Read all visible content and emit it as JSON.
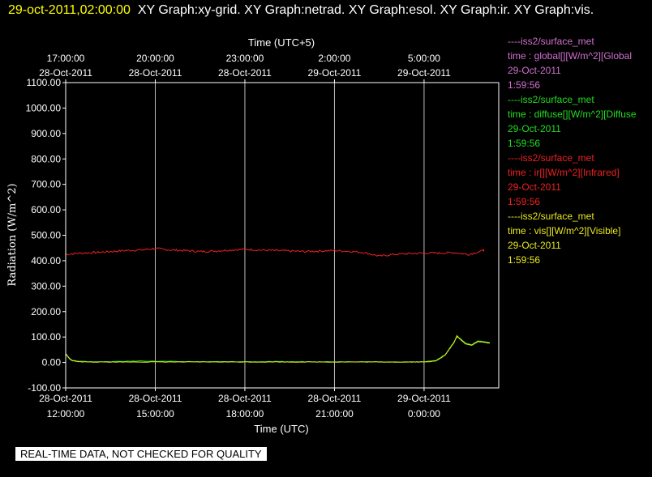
{
  "header": {
    "timestamp": "29-oct-2011,02:00:00",
    "graphs": "XY Graph:xy-grid.  XY Graph:netrad.  XY Graph:esol.  XY Graph:ir.  XY Graph:vis."
  },
  "notice": "REAL-TIME DATA, NOT CHECKED FOR QUALITY",
  "legend": [
    {
      "source": "----iss2/surface_met",
      "variable": "time : global[][W/m^2][Global",
      "date": "29-Oct-2011",
      "time": "1:59:56",
      "color": "#d070d0"
    },
    {
      "source": "----iss2/surface_met",
      "variable": "time : diffuse[][W/m^2][Diffuse",
      "date": "29-Oct-2011",
      "time": "1:59:56",
      "color": "#22dd22"
    },
    {
      "source": "----iss2/surface_met",
      "variable": "time : ir[][W/m^2][Infrared]",
      "date": "29-Oct-2011",
      "time": "1:59:56",
      "color": "#ee2020"
    },
    {
      "source": "----iss2/surface_met",
      "variable": "time : vis[][W/m^2][Visible]",
      "date": "29-Oct-2011",
      "time": "1:59:56",
      "color": "#e8e820"
    }
  ],
  "chart_data": {
    "type": "line",
    "xlabel": "Time (UTC)",
    "top_xlabel": "Time (UTC+5)",
    "ylabel": "Radiation (W/m^2)",
    "ylim": [
      -100,
      1100
    ],
    "xlim_hours": [
      12,
      26.5
    ],
    "yticks": [
      "1100.00",
      "1000.00",
      "900.00",
      "800.00",
      "700.00",
      "600.00",
      "500.00",
      "400.00",
      "300.00",
      "200.00",
      "100.00",
      "0.00",
      "-100.00"
    ],
    "bottom_ticks": [
      {
        "hour": 12,
        "date": "28-Oct-2011",
        "time": "12:00:00"
      },
      {
        "hour": 15,
        "date": "28-Oct-2011",
        "time": "15:00:00"
      },
      {
        "hour": 18,
        "date": "28-Oct-2011",
        "time": "18:00:00"
      },
      {
        "hour": 21,
        "date": "28-Oct-2011",
        "time": "21:00:00"
      },
      {
        "hour": 24,
        "date": "29-Oct-2011",
        "time": "0:00:00"
      }
    ],
    "top_ticks": [
      {
        "hour": 12,
        "time": "17:00:00",
        "date": "28-Oct-2011"
      },
      {
        "hour": 15,
        "time": "20:00:00",
        "date": "28-Oct-2011"
      },
      {
        "hour": 18,
        "time": "23:00:00",
        "date": "28-Oct-2011"
      },
      {
        "hour": 21,
        "time": "2:00:00",
        "date": "29-Oct-2011"
      },
      {
        "hour": 24,
        "time": "5:00:00",
        "date": "29-Oct-2011"
      }
    ],
    "grid": true,
    "series": [
      {
        "name": "ir",
        "color": "#ee2020",
        "x": [
          12.0,
          12.5,
          13.0,
          13.5,
          14.0,
          14.5,
          15.0,
          15.5,
          16.0,
          16.5,
          17.0,
          17.5,
          18.0,
          18.5,
          19.0,
          19.5,
          20.0,
          20.5,
          21.0,
          21.5,
          22.0,
          22.5,
          23.0,
          23.5,
          24.0,
          24.5,
          25.0,
          25.5,
          26.0,
          26.0
        ],
        "y": [
          425,
          430,
          432,
          436,
          440,
          442,
          448,
          442,
          440,
          436,
          438,
          442,
          445,
          442,
          440,
          438,
          436,
          438,
          440,
          437,
          432,
          418,
          425,
          428,
          430,
          430,
          432,
          425,
          440,
          445
        ]
      },
      {
        "name": "diffuse",
        "color": "#22dd22",
        "x": [
          12.0,
          12.1,
          12.2,
          12.4,
          12.8,
          13.5,
          14.5,
          15.5,
          16.5,
          17.5,
          18.5,
          19.5,
          20.5,
          21.5,
          22.5,
          23.5,
          24.0,
          24.4,
          24.7,
          25.0,
          25.1,
          25.2,
          25.4,
          25.6,
          25.8,
          26.0,
          26.2
        ],
        "y": [
          35,
          20,
          10,
          5,
          3,
          3,
          6,
          4,
          3,
          3,
          3,
          3,
          3,
          3,
          2,
          2,
          3,
          8,
          30,
          80,
          100,
          95,
          75,
          70,
          85,
          82,
          78
        ]
      },
      {
        "name": "vis",
        "color": "#e8e820",
        "x": [
          12.0,
          12.1,
          12.2,
          12.4,
          12.8,
          13.5,
          14.5,
          15.5,
          16.5,
          17.5,
          18.5,
          19.5,
          20.5,
          21.5,
          22.5,
          23.5,
          24.0,
          24.4,
          24.7,
          25.0,
          25.1,
          25.2,
          25.4,
          25.6,
          25.8,
          26.0,
          26.2
        ],
        "y": [
          35,
          18,
          8,
          3,
          2,
          2,
          2,
          2,
          2,
          2,
          2,
          2,
          2,
          2,
          2,
          2,
          2,
          6,
          28,
          78,
          105,
          92,
          72,
          68,
          82,
          80,
          75
        ]
      }
    ]
  }
}
